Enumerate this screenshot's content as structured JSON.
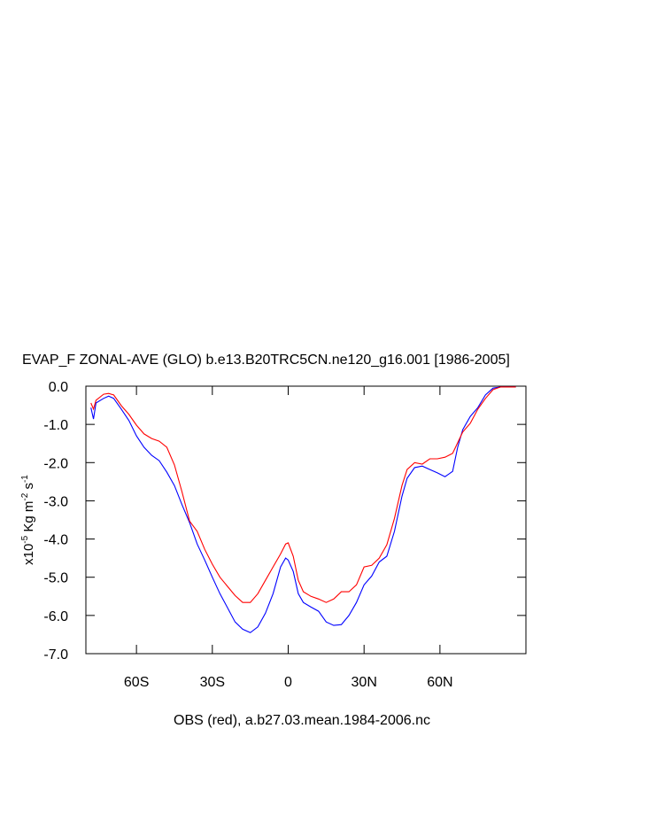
{
  "chart_data": {
    "type": "line",
    "title": "EVAP_F ZONAL-AVE (GLO) b.e13.B20TRC5CN.ne120_g16.001 [1986-2005]",
    "subtitle": "OBS (red), a.b27.03.mean.1984-2006.nc",
    "ylabel": {
      "parts": [
        "x10",
        "-5",
        " Kg m",
        "-2",
        " s",
        "-1"
      ]
    },
    "x": [
      -78,
      -77,
      -76,
      -73,
      -71,
      -69,
      -66,
      -63,
      -60,
      -57,
      -54,
      -51,
      -48,
      -45,
      -42,
      -39,
      -36,
      -33,
      -30,
      -27,
      -24,
      -21,
      -18,
      -15,
      -12,
      -9,
      -6,
      -3,
      -1,
      0,
      2,
      4,
      6,
      9,
      12,
      15,
      18,
      21,
      24,
      27,
      30,
      33,
      36,
      39,
      42,
      45,
      47,
      50,
      53,
      56,
      59,
      62,
      65,
      67,
      69,
      72,
      75,
      78,
      81,
      84,
      90
    ],
    "series": [
      {
        "color": "#0000ff",
        "values": [
          -0.56,
          -0.86,
          -0.44,
          -0.32,
          -0.26,
          -0.32,
          -0.6,
          -0.9,
          -1.3,
          -1.6,
          -1.81,
          -1.95,
          -2.25,
          -2.6,
          -3.1,
          -3.57,
          -4.13,
          -4.55,
          -5.0,
          -5.43,
          -5.8,
          -6.17,
          -6.36,
          -6.45,
          -6.3,
          -5.94,
          -5.43,
          -4.73,
          -4.5,
          -4.55,
          -4.85,
          -5.43,
          -5.66,
          -5.78,
          -5.89,
          -6.17,
          -6.26,
          -6.24,
          -6.0,
          -5.66,
          -5.2,
          -4.97,
          -4.6,
          -4.45,
          -3.8,
          -2.88,
          -2.41,
          -2.13,
          -2.09,
          -2.18,
          -2.27,
          -2.37,
          -2.23,
          -1.6,
          -1.14,
          -0.79,
          -0.56,
          -0.23,
          -0.05,
          -0.02,
          -0.02
        ]
      },
      {
        "color": "#ff0000",
        "values": [
          -0.44,
          -0.6,
          -0.37,
          -0.21,
          -0.19,
          -0.23,
          -0.51,
          -0.74,
          -1.02,
          -1.25,
          -1.37,
          -1.44,
          -1.6,
          -2.06,
          -2.76,
          -3.53,
          -3.8,
          -4.27,
          -4.66,
          -5.0,
          -5.24,
          -5.48,
          -5.66,
          -5.66,
          -5.43,
          -5.08,
          -4.73,
          -4.39,
          -4.13,
          -4.1,
          -4.45,
          -5.08,
          -5.38,
          -5.5,
          -5.57,
          -5.66,
          -5.57,
          -5.38,
          -5.38,
          -5.2,
          -4.73,
          -4.69,
          -4.5,
          -4.15,
          -3.46,
          -2.6,
          -2.18,
          -2.0,
          -2.04,
          -1.9,
          -1.9,
          -1.86,
          -1.76,
          -1.48,
          -1.2,
          -0.97,
          -0.6,
          -0.32,
          -0.09,
          -0.02,
          -0.02
        ]
      }
    ],
    "xlim": [
      -80,
      94
    ],
    "xticks": [
      {
        "value": -60,
        "label": "60S"
      },
      {
        "value": -30,
        "label": "30S"
      },
      0,
      {
        "value": 30,
        "label": "30N"
      },
      {
        "value": 60,
        "label": "60N"
      }
    ],
    "ylim": [
      -7,
      0
    ],
    "yticks": [
      {
        "value": 0,
        "label": "0.0"
      },
      {
        "value": -1,
        "label": "-1.0"
      },
      {
        "value": -2,
        "label": "-2.0"
      },
      {
        "value": -3,
        "label": "-3.0"
      },
      {
        "value": -4,
        "label": "-4.0"
      },
      {
        "value": -5,
        "label": "-5.0"
      },
      {
        "value": -6,
        "label": "-6.0"
      },
      {
        "value": -7,
        "label": "-7.0"
      }
    ]
  }
}
